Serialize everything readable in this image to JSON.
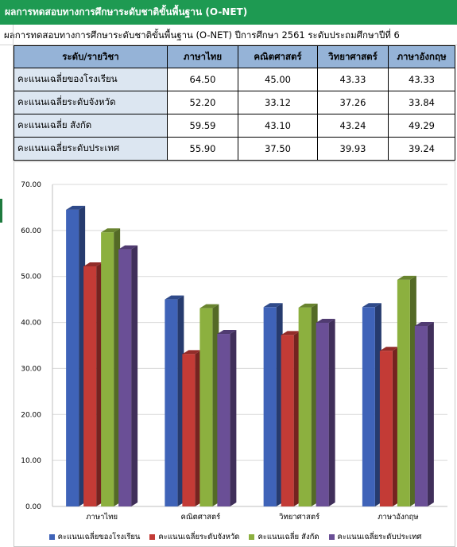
{
  "header": {
    "title": "ผลการทดสอบทางการศึกษาระดับชาติขั้นพื้นฐาน (O-NET)"
  },
  "subtitle": "ผลการทดสอบทางการศึกษาระดับชาติขั้นพื้นฐาน (O-NET) ปีการศึกษา 2561 ระดับประถมศึกษาปีที่ 6",
  "table": {
    "headers": [
      "ระดับ/รายวิชา",
      "ภาษาไทย",
      "คณิตศาสตร์",
      "วิทยาศาสตร์",
      "ภาษาอังกฤษ"
    ],
    "rows": [
      {
        "label": "คะแนนเฉลี่ยของโรงเรียน",
        "values": [
          "64.50",
          "45.00",
          "43.33",
          "43.33"
        ]
      },
      {
        "label": "คะแนนเฉลี่ยระดับจังหวัด",
        "values": [
          "52.20",
          "33.12",
          "37.26",
          "33.84"
        ]
      },
      {
        "label": "คะแนนเฉลี่ย สังกัด",
        "values": [
          "59.59",
          "43.10",
          "43.24",
          "49.29"
        ]
      },
      {
        "label": "คะแนนเฉลี่ยระดับประเทศ",
        "values": [
          "55.90",
          "37.50",
          "39.93",
          "39.24"
        ]
      }
    ]
  },
  "chart_data": {
    "type": "bar",
    "title": "",
    "xlabel": "",
    "ylabel": "",
    "categories": [
      "ภาษาไทย",
      "คณิตศาสตร์",
      "วิทยาศาสตร์",
      "ภาษาอังกฤษ"
    ],
    "series": [
      {
        "name": "คะแนนเฉลี่ยของโรงเรียน",
        "values": [
          64.5,
          45.0,
          43.33,
          43.33
        ],
        "color": "#3f63b8"
      },
      {
        "name": "คะแนนเฉลี่ยระดับจังหวัด",
        "values": [
          52.2,
          33.12,
          37.26,
          33.84
        ],
        "color": "#c33b36"
      },
      {
        "name": "คะแนนเฉลี่ย สังกัด",
        "values": [
          59.59,
          43.1,
          43.24,
          49.29
        ],
        "color": "#8cb03f"
      },
      {
        "name": "คะแนนเฉลี่ยระดับประเทศ",
        "values": [
          55.9,
          37.5,
          39.93,
          39.24
        ],
        "color": "#6a4f96"
      }
    ],
    "ylim": [
      0,
      70
    ],
    "yticks": [
      "0.00",
      "10.00",
      "20.00",
      "30.00",
      "40.00",
      "50.00",
      "60.00",
      "70.00"
    ],
    "grid": true,
    "style": "3d-columns",
    "legend_position": "bottom"
  }
}
